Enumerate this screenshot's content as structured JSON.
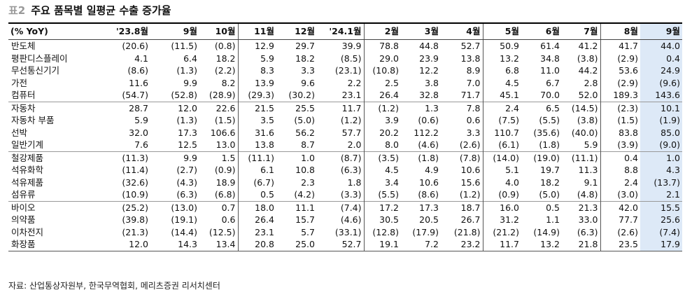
{
  "title": {
    "tag": "표2",
    "text": "주요 품목별 일평균 수출 증가율"
  },
  "table": {
    "header": [
      "(% YoY)",
      "'23.8월",
      "9월",
      "10월",
      "11월",
      "12월",
      "'24.1월",
      "2월",
      "3월",
      "4월",
      "5월",
      "6월",
      "7월",
      "8월",
      "9월"
    ],
    "groups": [
      [
        {
          "label": "반도체",
          "values": [
            "(20.6)",
            "(11.5)",
            "(0.8)",
            "12.9",
            "29.7",
            "39.9",
            "78.8",
            "44.8",
            "52.7",
            "50.9",
            "61.4",
            "41.2",
            "41.7",
            "44.0"
          ]
        },
        {
          "label": "평판디스플레이",
          "values": [
            "4.1",
            "6.4",
            "18.2",
            "5.9",
            "18.2",
            "(8.5)",
            "29.0",
            "23.9",
            "13.8",
            "13.2",
            "34.8",
            "(3.8)",
            "(2.9)",
            "0.4"
          ]
        },
        {
          "label": "무선통신기기",
          "values": [
            "(8.6)",
            "(1.3)",
            "(2.2)",
            "8.3",
            "3.3",
            "(23.1)",
            "(10.8)",
            "12.2",
            "8.9",
            "6.8",
            "11.0",
            "44.2",
            "53.6",
            "24.9"
          ]
        },
        {
          "label": "가전",
          "values": [
            "11.6",
            "9.9",
            "8.2",
            "13.9",
            "9.6",
            "2.2",
            "2.5",
            "3.8",
            "7.0",
            "4.5",
            "6.7",
            "2.8",
            "(2.9)",
            "(9.6)"
          ]
        },
        {
          "label": "컴퓨터",
          "values": [
            "(54.7)",
            "(52.8)",
            "(28.9)",
            "(29.3)",
            "(30.2)",
            "23.1",
            "26.4",
            "32.8",
            "71.7",
            "45.1",
            "70.0",
            "52.0",
            "189.3",
            "143.6"
          ]
        }
      ],
      [
        {
          "label": "자동차",
          "values": [
            "28.7",
            "12.0",
            "22.6",
            "21.5",
            "25.5",
            "11.7",
            "(1.2)",
            "1.3",
            "7.8",
            "2.4",
            "6.5",
            "(14.5)",
            "(2.3)",
            "10.1"
          ]
        },
        {
          "label": "자동차 부품",
          "values": [
            "5.9",
            "(1.3)",
            "(1.5)",
            "3.5",
            "(5.0)",
            "(1.2)",
            "3.9",
            "(0.6)",
            "0.6",
            "(7.5)",
            "(5.5)",
            "(3.8)",
            "(1.5)",
            "(1.9)"
          ]
        },
        {
          "label": "선박",
          "values": [
            "32.0",
            "17.3",
            "106.6",
            "31.6",
            "56.2",
            "57.7",
            "20.2",
            "112.2",
            "3.3",
            "110.7",
            "(35.6)",
            "(40.0)",
            "83.8",
            "85.0"
          ]
        },
        {
          "label": "일반기계",
          "values": [
            "7.6",
            "12.5",
            "13.0",
            "13.8",
            "8.7",
            "2.0",
            "8.0",
            "(4.6)",
            "(2.6)",
            "(6.1)",
            "(1.8)",
            "5.9",
            "(3.9)",
            "(9.0)"
          ]
        }
      ],
      [
        {
          "label": "철강제품",
          "values": [
            "(11.3)",
            "9.9",
            "1.5",
            "(11.1)",
            "1.0",
            "(8.7)",
            "(3.5)",
            "(1.8)",
            "(7.8)",
            "(14.0)",
            "(19.0)",
            "(11.1)",
            "0.4",
            "1.0"
          ]
        },
        {
          "label": "석유화학",
          "values": [
            "(11.4)",
            "(2.7)",
            "(0.9)",
            "6.1",
            "10.8",
            "(6.3)",
            "4.5",
            "4.9",
            "10.6",
            "5.1",
            "19.7",
            "11.3",
            "8.8",
            "4.3"
          ]
        },
        {
          "label": "석유제품",
          "values": [
            "(32.6)",
            "(4.3)",
            "18.9",
            "(6.7)",
            "2.3",
            "1.8",
            "3.4",
            "10.6",
            "15.6",
            "4.0",
            "18.2",
            "9.1",
            "2.4",
            "(13.7)"
          ]
        },
        {
          "label": "섬유류",
          "values": [
            "(10.9)",
            "(6.3)",
            "(6.8)",
            "0.5",
            "(4.2)",
            "(3.3)",
            "(5.5)",
            "(8.6)",
            "(1.2)",
            "(0.9)",
            "(5.0)",
            "(4.8)",
            "(3.0)",
            "2.1"
          ]
        }
      ],
      [
        {
          "label": "바이오",
          "values": [
            "(25.2)",
            "(13.0)",
            "0.7",
            "18.0",
            "11.1",
            "(7.4)",
            "17.2",
            "17.3",
            "18.7",
            "16.0",
            "0.5",
            "21.3",
            "42.0",
            "15.5"
          ]
        },
        {
          "label": "의약품",
          "values": [
            "(39.8)",
            "(19.1)",
            "0.6",
            "26.4",
            "15.7",
            "(4.6)",
            "30.5",
            "20.5",
            "26.7",
            "31.2",
            "1.1",
            "33.0",
            "77.7",
            "25.6"
          ]
        },
        {
          "label": "이차전지",
          "values": [
            "(21.3)",
            "(14.4)",
            "(12.5)",
            "23.1",
            "5.7",
            "(33.1)",
            "(12.8)",
            "(17.9)",
            "(21.8)",
            "(21.2)",
            "(14.9)",
            "(6.3)",
            "(2.6)",
            "(7.4)"
          ]
        },
        {
          "label": "화장품",
          "values": [
            "12.0",
            "14.3",
            "13.4",
            "20.8",
            "25.0",
            "52.7",
            "19.1",
            "7.2",
            "23.2",
            "11.7",
            "13.2",
            "21.8",
            "23.5",
            "17.9"
          ]
        }
      ]
    ]
  },
  "source": "자료: 산업통상자원부, 한국무역협회, 메리츠증권 리서치센터"
}
